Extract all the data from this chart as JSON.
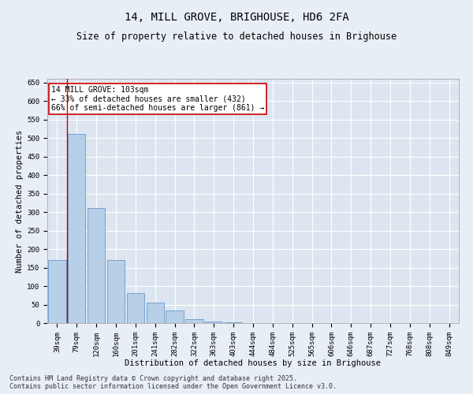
{
  "title": "14, MILL GROVE, BRIGHOUSE, HD6 2FA",
  "subtitle": "Size of property relative to detached houses in Brighouse",
  "xlabel": "Distribution of detached houses by size in Brighouse",
  "ylabel": "Number of detached properties",
  "categories": [
    "39sqm",
    "79sqm",
    "120sqm",
    "160sqm",
    "201sqm",
    "241sqm",
    "282sqm",
    "322sqm",
    "363sqm",
    "403sqm",
    "444sqm",
    "484sqm",
    "525sqm",
    "565sqm",
    "606sqm",
    "646sqm",
    "687sqm",
    "727sqm",
    "768sqm",
    "808sqm",
    "849sqm"
  ],
  "values": [
    170,
    510,
    310,
    170,
    80,
    55,
    35,
    10,
    5,
    2,
    0,
    0,
    0,
    0,
    0,
    1,
    0,
    0,
    0,
    0,
    0
  ],
  "bar_color": "#b8cfe8",
  "bar_edge_color": "#6699cc",
  "vline_x": 0.5,
  "vline_color": "#cc0000",
  "annotation_text": "14 MILL GROVE: 103sqm\n← 33% of detached houses are smaller (432)\n66% of semi-detached houses are larger (861) →",
  "annotation_box_color": "#cc0000",
  "ylim": [
    0,
    660
  ],
  "yticks": [
    0,
    50,
    100,
    150,
    200,
    250,
    300,
    350,
    400,
    450,
    500,
    550,
    600,
    650
  ],
  "background_color": "#e8eef5",
  "plot_background": "#dde6f0",
  "footer_text": "Contains HM Land Registry data © Crown copyright and database right 2025.\nContains public sector information licensed under the Open Government Licence v3.0.",
  "title_fontsize": 10,
  "subtitle_fontsize": 8.5,
  "axis_label_fontsize": 7.5,
  "tick_fontsize": 6.5,
  "annotation_fontsize": 7
}
